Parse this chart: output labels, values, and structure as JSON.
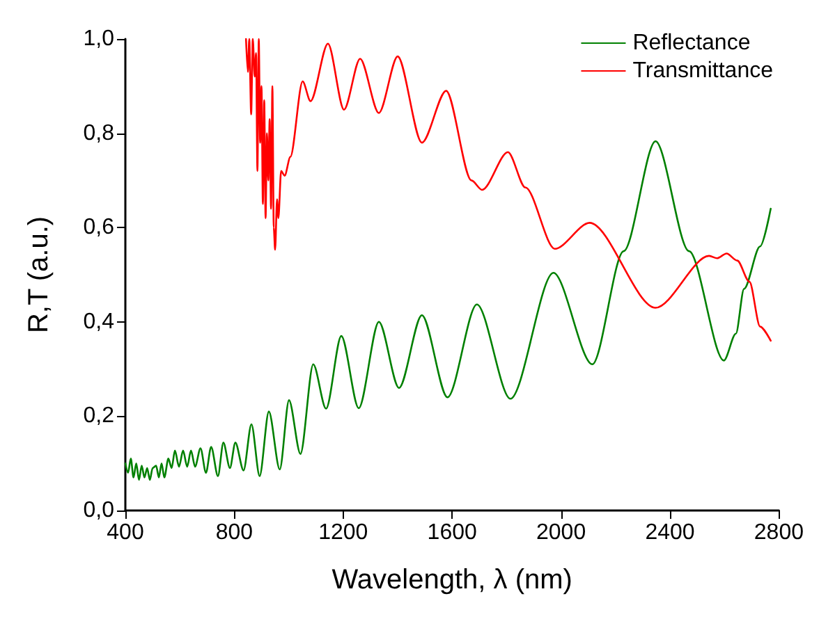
{
  "chart_data": {
    "type": "line",
    "xlabel": "Wavelength, λ (nm)",
    "ylabel": "R,T (a.u.)",
    "xlim": [
      400,
      2800
    ],
    "xticks": [
      400,
      800,
      1200,
      1600,
      2000,
      2400,
      2800
    ],
    "ylim": [
      0,
      1
    ],
    "yticks": [
      {
        "value": 0,
        "label": "0,0"
      },
      {
        "value": 0.2,
        "label": "0,2"
      },
      {
        "value": 0.4,
        "label": "0,4"
      },
      {
        "value": 0.6,
        "label": "0,6"
      },
      {
        "value": 0.8,
        "label": "0,8"
      },
      {
        "value": 1,
        "label": "1,0"
      }
    ],
    "grid": false,
    "legend": "top right",
    "marker": "none",
    "line_style": "solid",
    "series": [
      {
        "name": "Reflectance",
        "color": "#008000",
        "x": [
          400,
          410,
          420,
          430,
          440,
          450,
          460,
          470,
          480,
          490,
          500,
          513,
          523,
          533,
          543,
          558,
          570,
          582,
          597,
          612,
          627,
          641,
          656,
          676,
          696,
          715,
          740,
          760,
          784,
          804,
          834,
          863,
          893,
          927,
          967,
          1001,
          1043,
          1090,
          1137,
          1193,
          1257,
          1331,
          1405,
          1489,
          1583,
          1691,
          1814,
          1972,
          2115,
          2230,
          2347,
          2470,
          2598,
          2642,
          2672,
          2731,
          2770
        ],
        "values": [
          0.1,
          0.08,
          0.11,
          0.07,
          0.1,
          0.065,
          0.095,
          0.07,
          0.09,
          0.065,
          0.09,
          0.095,
          0.07,
          0.1,
          0.07,
          0.11,
          0.09,
          0.127,
          0.093,
          0.127,
          0.093,
          0.127,
          0.093,
          0.132,
          0.08,
          0.135,
          0.073,
          0.144,
          0.09,
          0.144,
          0.085,
          0.183,
          0.073,
          0.21,
          0.087,
          0.234,
          0.12,
          0.31,
          0.216,
          0.37,
          0.217,
          0.4,
          0.26,
          0.414,
          0.24,
          0.437,
          0.237,
          0.504,
          0.31,
          0.55,
          0.783,
          0.55,
          0.318,
          0.375,
          0.47,
          0.56,
          0.64
        ]
      },
      {
        "name": "Transmittance",
        "color": "#ff0000",
        "x": [
          843,
          850,
          855,
          862,
          868,
          875,
          880,
          885,
          890,
          895,
          900,
          905,
          910,
          915,
          920,
          925,
          930,
          935,
          940,
          945,
          950,
          957,
          962,
          972,
          985,
          1006,
          1051,
          1080,
          1144,
          1203,
          1262,
          1331,
          1400,
          1489,
          1578,
          1671,
          1710,
          1805,
          1869,
          1977,
          2105,
          2347,
          2544,
          2573,
          2608,
          2647,
          2692,
          2731,
          2770
        ],
        "values": [
          1.0,
          0.93,
          1.0,
          0.84,
          1.0,
          0.92,
          0.97,
          0.72,
          1.0,
          0.78,
          0.9,
          0.65,
          0.87,
          0.62,
          0.8,
          0.7,
          0.83,
          0.64,
          0.9,
          0.6,
          0.553,
          0.66,
          0.62,
          0.72,
          0.71,
          0.75,
          0.91,
          0.868,
          0.99,
          0.85,
          0.958,
          0.843,
          0.963,
          0.78,
          0.89,
          0.7,
          0.68,
          0.76,
          0.685,
          0.555,
          0.61,
          0.43,
          0.54,
          0.535,
          0.545,
          0.53,
          0.485,
          0.39,
          0.36
        ]
      }
    ]
  }
}
